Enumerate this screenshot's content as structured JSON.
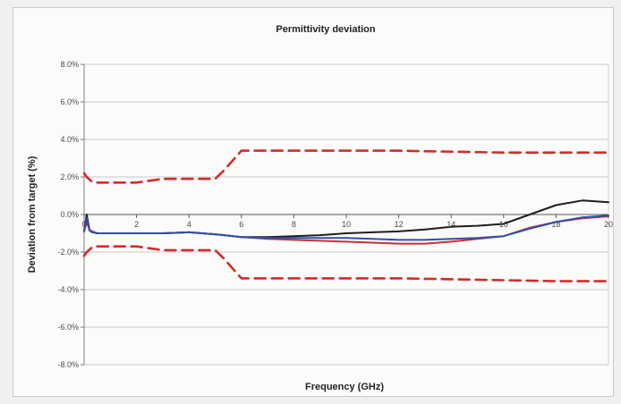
{
  "chart_data": {
    "type": "line",
    "title": "Permittivity deviation",
    "xlabel": "Frequency (GHz)",
    "ylabel": "Deviation from target (%)",
    "xlim": [
      0,
      20
    ],
    "ylim": [
      -8,
      8
    ],
    "x_ticks": [
      0,
      2,
      4,
      6,
      8,
      10,
      12,
      14,
      16,
      18,
      20
    ],
    "x_tick_labels": [
      "0",
      "2",
      "4",
      "6",
      "8",
      "10",
      "12",
      "14",
      "16",
      "18",
      "20"
    ],
    "y_ticks": [
      8,
      6,
      4,
      2,
      0,
      -2,
      -4,
      -6,
      -8
    ],
    "y_tick_labels": [
      "8.0%",
      "6.0%",
      "4.0%",
      "2.0%",
      "0.0%",
      "-2.0%",
      "-4.0%",
      "-6.0%",
      "-8.0%"
    ],
    "grid": "horizontal",
    "legend": "none",
    "series": [
      {
        "color": "#d42a2a",
        "style": "dashed",
        "x": [
          0,
          0.1,
          0.3,
          0.5,
          1,
          2,
          3,
          4,
          5,
          5.3,
          6,
          8,
          10,
          12,
          14,
          16,
          18,
          20
        ],
        "y": [
          2.2,
          2.0,
          1.75,
          1.7,
          1.7,
          1.7,
          1.9,
          1.9,
          1.9,
          2.3,
          3.4,
          3.4,
          3.4,
          3.4,
          3.35,
          3.3,
          3.3,
          3.3
        ]
      },
      {
        "color": "#d42a2a",
        "style": "dashed",
        "x": [
          0,
          0.1,
          0.3,
          0.5,
          1,
          2,
          3,
          4,
          5,
          5.3,
          6,
          8,
          10,
          12,
          14,
          16,
          18,
          20
        ],
        "y": [
          -2.2,
          -2.0,
          -1.75,
          -1.7,
          -1.7,
          -1.7,
          -1.9,
          -1.9,
          -1.9,
          -2.3,
          -3.4,
          -3.4,
          -3.4,
          -3.4,
          -3.45,
          -3.5,
          -3.55,
          -3.55
        ]
      },
      {
        "color": "#1e1e1e",
        "style": "solid",
        "x": [
          0,
          0.1,
          0.2,
          0.3,
          0.5,
          1,
          2,
          3,
          4,
          5,
          6,
          7,
          8,
          9,
          10,
          11,
          12,
          13,
          14,
          15,
          16,
          17,
          18,
          19,
          20
        ],
        "y": [
          -0.9,
          0.0,
          -0.8,
          -0.9,
          -1.0,
          -1.0,
          -1.0,
          -1.0,
          -0.95,
          -1.05,
          -1.2,
          -1.2,
          -1.15,
          -1.1,
          -1.0,
          -0.95,
          -0.9,
          -0.8,
          -0.65,
          -0.6,
          -0.5,
          0.0,
          0.5,
          0.75,
          0.65
        ]
      },
      {
        "color": "#c83232",
        "style": "solid",
        "x": [
          0,
          0.1,
          0.2,
          0.3,
          0.5,
          1,
          2,
          3,
          4,
          5,
          6,
          7,
          8,
          9,
          10,
          11,
          12,
          13,
          14,
          15,
          16,
          17,
          18,
          19,
          20
        ],
        "y": [
          -0.9,
          -0.4,
          -0.8,
          -0.9,
          -1.0,
          -1.0,
          -1.0,
          -1.0,
          -0.95,
          -1.05,
          -1.2,
          -1.3,
          -1.35,
          -1.4,
          -1.45,
          -1.5,
          -1.55,
          -1.55,
          -1.45,
          -1.3,
          -1.15,
          -0.7,
          -0.4,
          -0.2,
          -0.1
        ]
      },
      {
        "color": "#2f4fae",
        "style": "solid",
        "x": [
          0,
          0.1,
          0.2,
          0.3,
          0.5,
          1,
          2,
          3,
          4,
          5,
          6,
          7,
          8,
          9,
          10,
          11,
          12,
          13,
          14,
          15,
          16,
          17,
          18,
          19,
          20
        ],
        "y": [
          -0.9,
          -0.2,
          -0.85,
          -0.95,
          -1.0,
          -1.0,
          -1.0,
          -1.0,
          -0.95,
          -1.05,
          -1.2,
          -1.25,
          -1.25,
          -1.25,
          -1.25,
          -1.3,
          -1.35,
          -1.35,
          -1.3,
          -1.25,
          -1.15,
          -0.75,
          -0.4,
          -0.15,
          -0.05
        ]
      }
    ]
  }
}
